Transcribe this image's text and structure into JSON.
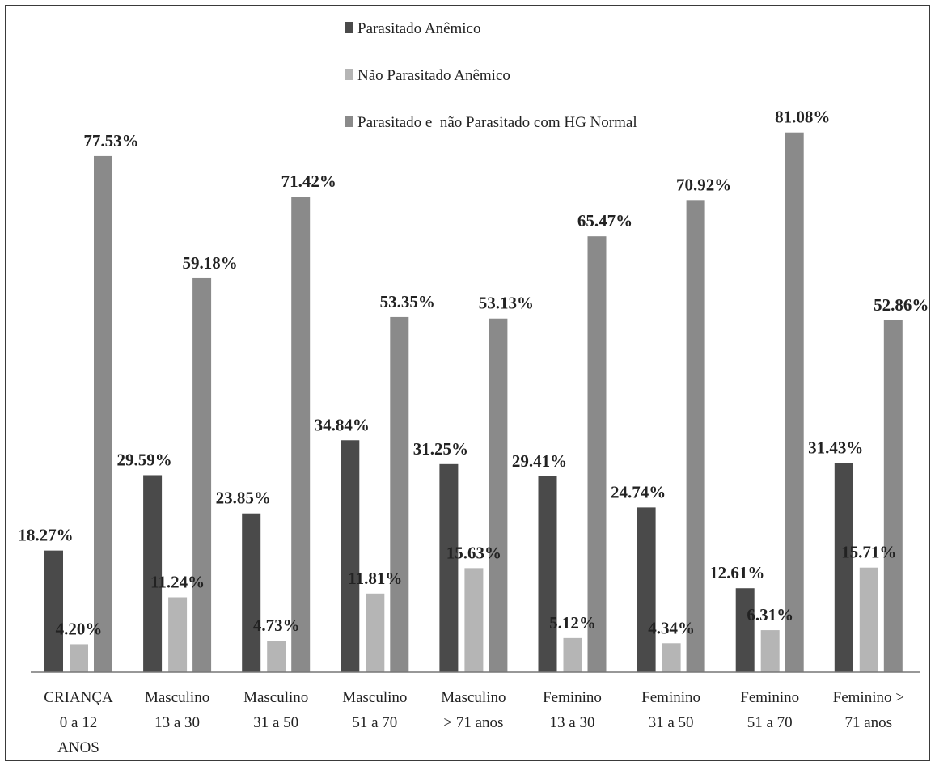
{
  "chart_data": {
    "type": "bar",
    "title": "",
    "xlabel": "",
    "ylabel": "",
    "ylim": [
      0,
      100
    ],
    "grid": false,
    "legend_position": "top",
    "categories": [
      [
        "CRIANÇA",
        "0 a 12",
        "ANOS"
      ],
      [
        "Masculino",
        "13 a 30"
      ],
      [
        "Masculino",
        "31 a 50"
      ],
      [
        "Masculino",
        "51 a 70"
      ],
      [
        "Masculino",
        "> 71 anos"
      ],
      [
        "Feminino",
        "13 a 30"
      ],
      [
        "Feminino",
        "31 a 50"
      ],
      [
        "Feminino",
        "51 a 70"
      ],
      [
        "Feminino >",
        "71 anos"
      ]
    ],
    "series": [
      {
        "name": "Parasitado Anêmico",
        "color": "#4a4a4a",
        "values": [
          18.27,
          29.59,
          23.85,
          34.84,
          31.25,
          29.41,
          24.74,
          12.61,
          31.43
        ],
        "labels": [
          "18.27%",
          "29.59%",
          "23.85%",
          "34.84%",
          "31.25%",
          "29.41%",
          "24.74%",
          "12.61%",
          "31.43%"
        ]
      },
      {
        "name": "Não Parasitado Anêmico",
        "color": "#b5b5b5",
        "values": [
          4.2,
          11.24,
          4.73,
          11.81,
          15.63,
          5.12,
          4.34,
          6.31,
          15.71
        ],
        "labels": [
          "4.20%",
          "11.24%",
          "4.73%",
          "11.81%",
          "15.63%",
          "5.12%",
          "4.34%",
          "6.31%",
          "15.71%"
        ]
      },
      {
        "name": "Parasitado e  não Parasitado com HG Normal",
        "color": "#8a8a8a",
        "values": [
          77.53,
          59.18,
          71.42,
          53.35,
          53.13,
          65.47,
          70.92,
          81.08,
          52.86
        ],
        "labels": [
          "77.53%",
          "59.18%",
          "71.42%",
          "53.35%",
          "53.13%",
          "65.47%",
          "70.92%",
          "81.08%",
          "52.86%"
        ]
      }
    ]
  }
}
